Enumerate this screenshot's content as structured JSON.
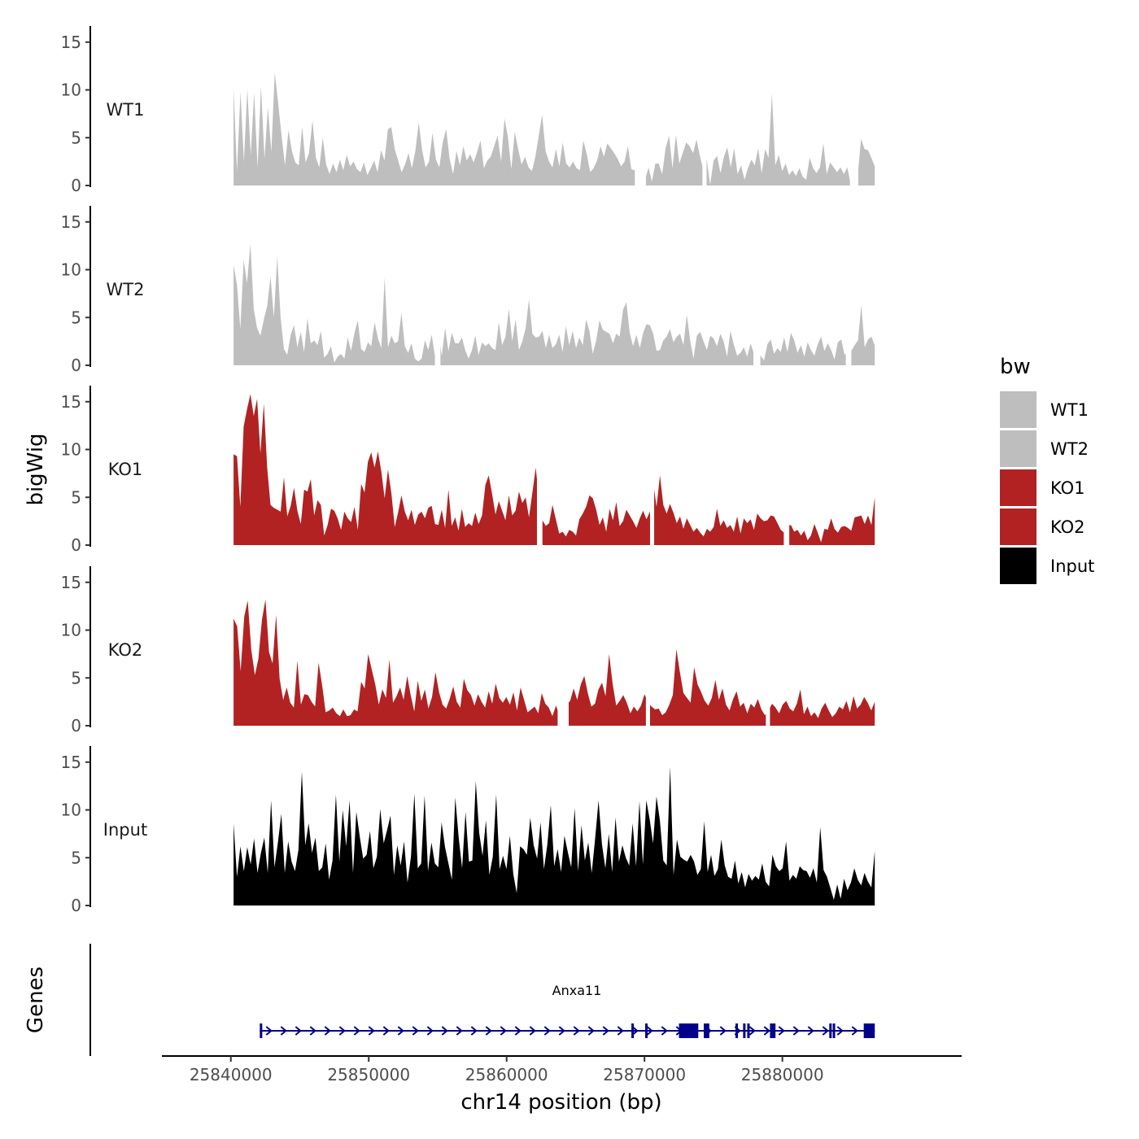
{
  "chart_data": {
    "type": "area",
    "title": "",
    "ylabel": "bigWig",
    "xlabel": "chr14 position (bp)",
    "xlim": [
      25835000,
      25893000
    ],
    "ylim": [
      0,
      16.5
    ],
    "y_ticks": [
      "0",
      "5",
      "10",
      "15"
    ],
    "x_ticks": [
      {
        "value": 25840000,
        "label": "25840000"
      },
      {
        "value": 25850000,
        "label": "25850000"
      },
      {
        "value": 25860000,
        "label": "25860000"
      },
      {
        "value": 25870000,
        "label": "25870000"
      },
      {
        "value": 25880000,
        "label": "25880000"
      }
    ],
    "data_range": [
      25840200,
      25886700
    ],
    "colors": {
      "WT": "#bebebe",
      "KO": "#b22222",
      "Input": "#000000",
      "gene": "#00008b",
      "axis": "#000000",
      "tick_text": "#4d4d4d"
    },
    "series": [
      {
        "name": "WT1",
        "label": "WT1",
        "color": "#bebebe",
        "values": [
          10.2,
          1.5,
          9.8,
          2.5,
          10.1,
          3.2,
          9.7,
          1.8,
          10.4,
          2.8,
          8.2,
          3.5,
          11.8,
          8.6,
          5.2,
          2.1,
          5.8,
          3.6,
          2.4,
          2.1,
          6.1,
          2.4,
          3.4,
          6.8,
          2.9,
          1.9,
          5.0,
          2.2,
          1.2,
          2.3,
          1.4,
          2.7,
          1.6,
          3.2,
          2.0,
          2.5,
          1.7,
          1.4,
          2.4,
          1.1,
          1.8,
          2.6,
          1.4,
          3.7,
          2.6,
          5.9,
          6.1,
          3.8,
          2.6,
          1.4,
          2.2,
          3.4,
          1.8,
          3.6,
          6.6,
          3.7,
          1.9,
          2.5,
          5.5,
          2.7,
          1.9,
          4.5,
          5.9,
          2.8,
          1.2,
          3.6,
          2.1,
          4.1,
          2.6,
          3.3,
          2.4,
          3.5,
          4.7,
          1.8,
          2.6,
          3.0,
          4.1,
          5.2,
          2.5,
          7.0,
          5.1,
          1.7,
          5.6,
          3.8,
          2.2,
          3.0,
          1.9,
          1.5,
          3.0,
          5.2,
          7.4,
          3.6,
          2.5,
          1.9,
          3.8,
          2.0,
          4.5,
          2.3,
          1.9,
          2.5,
          1.8,
          1.6,
          4.7,
          3.3,
          1.4,
          1.8,
          2.6,
          4.1,
          3.0,
          4.4,
          3.9,
          3.4,
          2.8,
          2.0,
          2.5,
          4.1,
          1.7,
          1.6,
          5.8,
          0.1,
          0.6,
          1.9,
          0.4,
          2.3,
          2.3,
          1.2,
          3.9,
          5.2,
          1.8,
          5.3,
          2.3,
          3.4,
          4.5,
          4.1,
          3.4,
          4.8,
          3.1,
          1.6,
          2.7,
          0.1,
          2.6,
          3.1,
          1.3,
          3.0,
          4.0,
          1.9,
          3.9,
          1.2,
          2.1,
          0.6,
          1.8,
          2.7,
          2.1,
          3.9,
          1.3,
          3.8,
          2.9,
          9.6,
          2.1,
          3.2,
          1.5,
          2.3,
          1.1,
          1.6,
          1.0,
          1.8,
          0.9,
          0.6,
          2.9,
          1.8,
          1.3,
          1.9,
          4.4,
          1.2,
          2.4,
          1.9,
          1.4,
          1.9,
          1.2,
          1.9,
          0.1,
          2.5,
          1.0,
          4.9,
          3.8,
          3.7,
          2.9,
          2.0
        ],
        "gaps": [
          [
            25869300,
            25870100
          ],
          [
            25874200,
            25874500
          ],
          [
            25884900,
            25885500
          ]
        ]
      },
      {
        "name": "WT2",
        "label": "WT2",
        "color": "#bebebe",
        "values": [
          10.5,
          8.4,
          3.8,
          11.0,
          8.6,
          12.7,
          5.9,
          3.9,
          3.1,
          4.8,
          6.2,
          9.3,
          5.0,
          11.4,
          5.0,
          1.7,
          1.1,
          3.2,
          4.2,
          1.9,
          3.5,
          1.4,
          4.9,
          2.3,
          2.6,
          2.1,
          3.6,
          0.8,
          1.2,
          2.0,
          0.3,
          0.9,
          1.2,
          0.7,
          2.9,
          1.5,
          3.4,
          4.7,
          1.7,
          1.4,
          2.4,
          2.0,
          4.5,
          2.8,
          1.8,
          9.2,
          1.9,
          3.1,
          2.3,
          2.5,
          5.5,
          2.0,
          1.3,
          2.3,
          0.7,
          0.4,
          0.7,
          2.6,
          1.6,
          3.2,
          0.9,
          3.5,
          1.0,
          3.9,
          1.5,
          3.4,
          2.3,
          2.3,
          2.9,
          1.6,
          0.7,
          1.6,
          3.1,
          1.1,
          2.4,
          2.0,
          2.3,
          1.8,
          1.6,
          4.5,
          2.1,
          3.0,
          5.9,
          2.5,
          4.8,
          1.6,
          2.5,
          3.9,
          6.9,
          3.3,
          2.9,
          3.0,
          3.6,
          1.8,
          3.2,
          1.8,
          2.2,
          3.2,
          1.4,
          4.1,
          2.1,
          3.6,
          1.8,
          2.9,
          2.1,
          4.8,
          3.6,
          1.2,
          2.6,
          4.7,
          3.7,
          3.5,
          3.3,
          2.3,
          3.3,
          3.0,
          5.8,
          6.6,
          3.4,
          2.0,
          3.2,
          1.8,
          3.4,
          4.3,
          4.2,
          3.3,
          1.5,
          1.6,
          2.6,
          3.0,
          3.8,
          2.4,
          3.0,
          3.3,
          2.1,
          5.3,
          2.6,
          0.7,
          3.1,
          3.5,
          2.5,
          1.6,
          3.1,
          2.8,
          2.0,
          3.3,
          2.5,
          0.9,
          3.6,
          2.2,
          1.0,
          1.3,
          1.9,
          0.9,
          2.3,
          1.2,
          1.5,
          1.0,
          0.5,
          2.2,
          2.7,
          1.2,
          1.8,
          1.4,
          2.9,
          1.4,
          3.4,
          2.6,
          1.3,
          2.1,
          0.9,
          2.4,
          1.6,
          1.0,
          2.2,
          3.0,
          1.5,
          2.3,
          1.6,
          0.6,
          2.4,
          2.7,
          1.1,
          1.4,
          1.5,
          2.1,
          2.6,
          6.3,
          1.9,
          2.7,
          3.0,
          2.1
        ],
        "gaps": [
          [
            25854800,
            25855200
          ],
          [
            25877900,
            25878400
          ],
          [
            25884600,
            25885000
          ]
        ]
      },
      {
        "name": "KO1",
        "label": "KO1",
        "color": "#b22222",
        "values": [
          9.5,
          9.3,
          4.0,
          12.4,
          14.2,
          15.8,
          13.5,
          15.3,
          9.6,
          14.8,
          8.1,
          4.2,
          3.9,
          3.7,
          3.5,
          7.1,
          3.0,
          4.1,
          6.0,
          3.6,
          2.2,
          5.8,
          5.6,
          6.9,
          3.1,
          4.7,
          4.2,
          1.0,
          2.1,
          3.8,
          3.6,
          2.8,
          1.6,
          3.5,
          2.8,
          2.4,
          4.0,
          1.6,
          6.4,
          5.5,
          8.7,
          9.7,
          8.1,
          9.8,
          7.7,
          4.9,
          7.9,
          5.4,
          1.9,
          3.4,
          5.2,
          3.5,
          2.6,
          3.7,
          2.1,
          3.2,
          3.5,
          2.8,
          3.9,
          4.1,
          2.2,
          2.1,
          3.7,
          1.8,
          5.8,
          2.0,
          2.9,
          1.5,
          3.8,
          1.9,
          2.3,
          2.0,
          3.4,
          2.2,
          3.1,
          6.3,
          7.3,
          5.4,
          3.2,
          4.6,
          3.6,
          2.6,
          5.2,
          3.1,
          3.6,
          5.6,
          4.4,
          5.0,
          2.9,
          5.5,
          8.1,
          4.7,
          2.6,
          2.0,
          2.3,
          4.2,
          2.7,
          1.2,
          1.4,
          0.9,
          1.6,
          1.4,
          1.0,
          2.7,
          3.3,
          4.0,
          5.2,
          4.9,
          3.7,
          2.1,
          2.9,
          1.4,
          3.8,
          2.6,
          4.5,
          2.0,
          2.5,
          3.7,
          3.1,
          2.5,
          1.8,
          2.8,
          3.6,
          2.7,
          3.5,
          6.5,
          4.0,
          7.3,
          4.2,
          3.3,
          4.3,
          3.4,
          2.3,
          3.0,
          1.7,
          2.8,
          2.1,
          1.4,
          1.8,
          1.3,
          0.9,
          1.7,
          1.4,
          1.9,
          3.8,
          2.0,
          2.6,
          1.8,
          2.1,
          1.4,
          3.0,
          1.2,
          2.8,
          2.3,
          2.7,
          1.6,
          3.3,
          2.8,
          2.5,
          2.6,
          3.1,
          3.0,
          2.3,
          1.6,
          1.3,
          2.0,
          2.1,
          1.4,
          1.6,
          1.0,
          1.5,
          0.5,
          1.0,
          2.2,
          1.3,
          0.3,
          1.7,
          1.6,
          2.8,
          1.7,
          1.3,
          1.9,
          2.0,
          1.8,
          1.5,
          2.9,
          3.0,
          3.1,
          2.2,
          3.1,
          2.1,
          5.0
        ],
        "gaps": [
          [
            25862200,
            25862600
          ],
          [
            25870400,
            25870700
          ],
          [
            25880100,
            25880500
          ]
        ]
      },
      {
        "name": "KO2",
        "label": "KO2",
        "color": "#b22222",
        "values": [
          11.2,
          10.4,
          5.7,
          11.4,
          13.1,
          7.9,
          5.3,
          7.0,
          11.1,
          13.2,
          7.7,
          6.5,
          11.6,
          4.9,
          2.7,
          4.0,
          2.4,
          1.9,
          6.8,
          2.2,
          3.3,
          3.2,
          2.5,
          2.0,
          6.6,
          4.2,
          1.4,
          1.6,
          1.9,
          1.3,
          1.0,
          1.7,
          1.0,
          1.1,
          1.7,
          1.5,
          4.6,
          3.9,
          7.5,
          5.9,
          4.3,
          2.2,
          3.8,
          2.9,
          6.9,
          2.4,
          3.1,
          4.0,
          2.7,
          5.2,
          3.2,
          1.5,
          4.7,
          2.6,
          3.8,
          1.8,
          3.0,
          5.6,
          3.5,
          2.2,
          1.8,
          2.8,
          4.1,
          2.5,
          1.9,
          4.9,
          3.7,
          3.2,
          2.1,
          3.3,
          2.5,
          1.9,
          3.6,
          2.3,
          4.4,
          2.9,
          2.4,
          3.0,
          2.2,
          3.5,
          1.6,
          4.0,
          2.7,
          1.4,
          1.7,
          2.0,
          1.3,
          3.4,
          2.3,
          1.9,
          1.0,
          2.1,
          1.1,
          0.9,
          2.2,
          2.6,
          3.9,
          2.7,
          4.3,
          5.2,
          3.4,
          2.0,
          2.3,
          3.8,
          4.5,
          3.1,
          7.5,
          4.4,
          2.1,
          2.6,
          3.2,
          2.4,
          1.3,
          2.0,
          1.5,
          2.1,
          3.3,
          2.4,
          2.0,
          1.7,
          1.8,
          1.1,
          1.4,
          2.2,
          3.2,
          8.0,
          5.6,
          3.4,
          2.9,
          2.4,
          6.1,
          4.3,
          3.5,
          2.6,
          2.1,
          2.9,
          4.8,
          2.7,
          3.9,
          2.2,
          1.6,
          2.8,
          3.6,
          2.0,
          2.4,
          1.3,
          2.3,
          1.9,
          2.8,
          1.7,
          1.1,
          1.6,
          2.3,
          1.9,
          1.3,
          2.2,
          2.6,
          1.8,
          1.5,
          2.3,
          3.8,
          1.2,
          2.0,
          1.0,
          1.4,
          0.8,
          1.8,
          2.4,
          1.6,
          0.9,
          1.3,
          2.0,
          1.7,
          2.6,
          1.4,
          3.1,
          1.8,
          2.2,
          3.0,
          2.4,
          1.6,
          2.5
        ],
        "gaps": [
          [
            25863700,
            25864500
          ],
          [
            25870100,
            25870400
          ],
          [
            25878800,
            25879100
          ]
        ]
      },
      {
        "name": "Input",
        "label": "Input",
        "color": "#000000",
        "values": [
          8.6,
          3.0,
          6.2,
          3.6,
          6.1,
          4.3,
          7.0,
          3.4,
          5.5,
          7.1,
          3.4,
          11.0,
          4.0,
          6.6,
          9.6,
          3.4,
          6.7,
          4.6,
          3.6,
          5.8,
          14.0,
          6.3,
          8.6,
          5.5,
          7.1,
          3.6,
          4.0,
          6.5,
          2.7,
          4.7,
          11.6,
          4.6,
          10.0,
          6.2,
          11.0,
          3.4,
          9.8,
          7.2,
          4.9,
          5.3,
          7.8,
          3.9,
          5.1,
          10.1,
          6.5,
          7.9,
          9.4,
          3.2,
          6.3,
          4.2,
          6.7,
          2.4,
          5.1,
          11.7,
          3.9,
          4.4,
          11.5,
          3.6,
          6.6,
          4.4,
          4.0,
          8.7,
          6.1,
          4.4,
          2.7,
          11.3,
          7.1,
          3.9,
          9.8,
          4.6,
          4.7,
          13.0,
          7.6,
          5.2,
          8.9,
          3.2,
          5.1,
          11.6,
          3.8,
          5.2,
          3.8,
          7.3,
          3.3,
          1.3,
          6.2,
          5.9,
          5.3,
          9.2,
          6.3,
          4.9,
          8.7,
          3.8,
          6.4,
          10.5,
          4.1,
          5.9,
          3.5,
          7.3,
          5.6,
          4.0,
          10.2,
          3.6,
          8.4,
          4.7,
          6.6,
          3.4,
          7.0,
          11.0,
          6.4,
          3.9,
          7.5,
          3.5,
          9.2,
          4.6,
          6.3,
          5.0,
          4.2,
          8.6,
          4.1,
          10.9,
          4.3,
          11.0,
          9.0,
          6.5,
          11.4,
          8.9,
          4.7,
          4.2,
          14.5,
          3.2,
          6.9,
          5.1,
          4.8,
          4.6,
          5.3,
          4.6,
          3.2,
          3.8,
          8.8,
          3.5,
          5.3,
          3.1,
          3.8,
          6.9,
          4.2,
          3.0,
          2.8,
          4.7,
          2.3,
          3.5,
          1.9,
          3.3,
          2.6,
          3.1,
          2.7,
          4.4,
          2.5,
          2.0,
          5.3,
          4.1,
          3.6,
          3.9,
          6.7,
          2.6,
          3.2,
          2.8,
          4.1,
          3.7,
          3.6,
          2.9,
          3.9,
          2.4,
          8.2,
          3.7,
          3.0,
          1.8,
          0.6,
          2.2,
          0.7,
          2.8,
          1.6,
          2.4,
          3.9,
          2.7,
          2.1,
          3.4,
          2.5,
          1.9,
          5.7
        ],
        "gaps": []
      }
    ],
    "legend": {
      "title": "bw",
      "position": "right",
      "items": [
        {
          "label": "WT1",
          "color": "#bebebe"
        },
        {
          "label": "WT2",
          "color": "#bebebe"
        },
        {
          "label": "KO1",
          "color": "#b22222"
        },
        {
          "label": "KO2",
          "color": "#b22222"
        },
        {
          "label": "Input",
          "color": "#000000"
        }
      ]
    },
    "genes_track": {
      "ylabel": "Genes",
      "gene": {
        "name": "Anxa11",
        "start": 25842100,
        "end": 25886700,
        "strand": "+",
        "exons": [
          {
            "start": 25842100,
            "end": 25842250
          },
          {
            "start": 25869050,
            "end": 25869150
          },
          {
            "start": 25870050,
            "end": 25870130
          },
          {
            "start": 25872500,
            "end": 25873900
          },
          {
            "start": 25874300,
            "end": 25874700
          },
          {
            "start": 25876600,
            "end": 25876700
          },
          {
            "start": 25877150,
            "end": 25877250
          },
          {
            "start": 25877450,
            "end": 25877550
          },
          {
            "start": 25879100,
            "end": 25879500
          },
          {
            "start": 25883400,
            "end": 25883480
          },
          {
            "start": 25883650,
            "end": 25883730
          },
          {
            "start": 25885900,
            "end": 25886700
          }
        ]
      }
    }
  }
}
